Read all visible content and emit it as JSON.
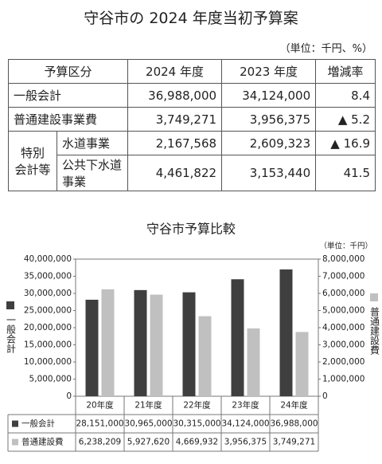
{
  "title": "守谷市の 2024 年度当初予算案",
  "unit": "（単位：千円、%）",
  "table": {
    "header": [
      "予算区分",
      "2024 年度",
      "2023 年度",
      "増減率"
    ],
    "rows": [
      [
        "一般会計",
        "36,988,000",
        "34,124,000",
        "8.4"
      ],
      [
        "普通建設事業費",
        "3,749,271",
        "3,956,375",
        "▲ 5.2"
      ]
    ],
    "group": "特別\n会計等",
    "group_rows": [
      [
        "水道事業",
        "2,167,568",
        "2,609,323",
        "▲ 16.9"
      ],
      [
        "公共下水道\n事業",
        "4,461,822",
        "3,153,440",
        "41.5"
      ]
    ]
  },
  "chart_data": {
    "type": "bar",
    "title": "守谷市予算比較",
    "unit": "（単位：千円）",
    "ylabel": "一般会計",
    "y2label": "普通建設費",
    "categories": [
      "20年度",
      "21年度",
      "22年度",
      "23年度",
      "24年度"
    ],
    "series": [
      {
        "name": "一般会計",
        "color": "#3f3f3f",
        "axis": "y",
        "values": [
          28151000,
          30965000,
          30315000,
          34124000,
          36988000
        ],
        "value_labels": [
          "28,151,000",
          "30,965,000",
          "30,315,000",
          "34,124,000",
          "36,988,000"
        ]
      },
      {
        "name": "普通建設費",
        "color": "#c0c0c0",
        "axis": "y2",
        "values": [
          6238209,
          5927620,
          4669932,
          3956375,
          3749271
        ],
        "value_labels": [
          "6,238,209",
          "5,927,620",
          "4,669,932",
          "3,956,375",
          "3,749,271"
        ]
      }
    ],
    "ylim": [
      0,
      40000000
    ],
    "yticks": [
      0,
      {
        "value": 5000000,
        "label": "5,000,000"
      },
      {
        "value": 10000000,
        "label": "10,000,000"
      },
      {
        "value": 15000000,
        "label": "15,000,000"
      },
      {
        "value": 20000000,
        "label": "20,000,000"
      },
      {
        "value": 25000000,
        "label": "25,000,000"
      },
      {
        "value": 30000000,
        "label": "30,000,000"
      },
      {
        "value": 35000000,
        "label": "35,000,000"
      },
      {
        "value": 40000000,
        "label": "40,000,000"
      }
    ],
    "y2lim": [
      0,
      8000000
    ],
    "y2ticks": [
      0,
      {
        "value": 1000000,
        "label": "1,000,000"
      },
      {
        "value": 2000000,
        "label": "2,000,000"
      },
      {
        "value": 3000000,
        "label": "3,000,000"
      },
      {
        "value": 4000000,
        "label": "4,000,000"
      },
      {
        "value": 5000000,
        "label": "5,000,000"
      },
      {
        "value": 6000000,
        "label": "6,000,000"
      },
      {
        "value": 7000000,
        "label": "7,000,000"
      },
      {
        "value": 8000000,
        "label": "8,000,000"
      }
    ],
    "grid": false
  }
}
